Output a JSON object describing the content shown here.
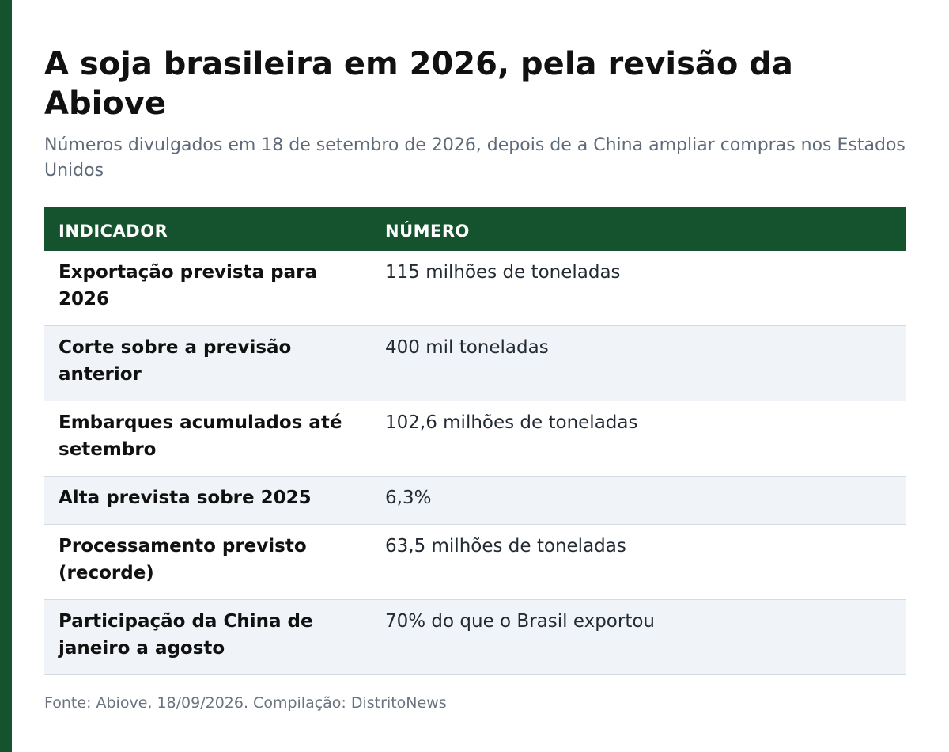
{
  "title": "A soja brasileira em 2026, pela revisão da Abiove",
  "subtitle": "Números divulgados em 18 de setembro de 2026, depois de a China ampliar compras nos Estados Unidos",
  "colors": {
    "accent": "#14532d",
    "stripe": "#f0f4f8"
  },
  "table": {
    "headers": [
      "INDICADOR",
      "NÚMERO"
    ],
    "rows": [
      {
        "label": "Exportação prevista para 2026",
        "value": "115 milhões de toneladas"
      },
      {
        "label": "Corte sobre a previsão anterior",
        "value": "400 mil toneladas"
      },
      {
        "label": "Embarques acumulados até setembro",
        "value": "102,6 milhões de toneladas"
      },
      {
        "label": "Alta prevista sobre 2025",
        "value": "6,3%"
      },
      {
        "label": "Processamento previsto (recorde)",
        "value": "63,5 milhões de toneladas"
      },
      {
        "label": "Participação da China de janeiro a agosto",
        "value": "70% do que o Brasil exportou"
      }
    ]
  },
  "source": "Fonte: Abiove, 18/09/2026. Compilação: DistritoNews"
}
